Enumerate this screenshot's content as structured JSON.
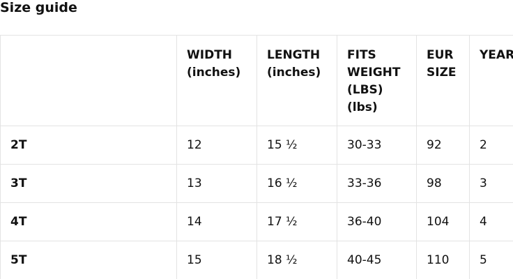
{
  "title": "Size guide",
  "table": {
    "headers": [
      "",
      "WIDTH (inches)",
      "LENGTH (inches)",
      "FITS WEIGHT (LBS) (lbs)",
      "EUR SIZE",
      "YEAR"
    ],
    "rows": [
      [
        "2T",
        "12",
        "15 ½",
        "30-33",
        "92",
        "2"
      ],
      [
        "3T",
        "13",
        "16 ½",
        "33-36",
        "98",
        "3"
      ],
      [
        "4T",
        "14",
        "17 ½",
        "36-40",
        "104",
        "4"
      ],
      [
        "5T",
        "15",
        "18 ½",
        "40-45",
        "110",
        "5"
      ]
    ]
  }
}
